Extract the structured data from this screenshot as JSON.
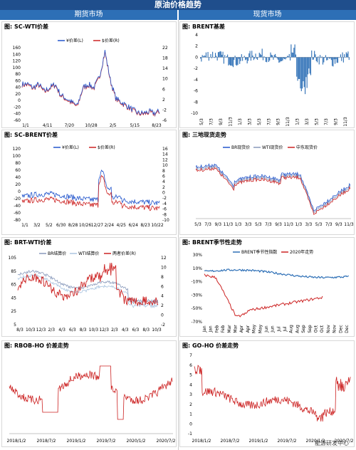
{
  "banner": "原油价格趋势",
  "headers": {
    "left": "期货市场",
    "right": "现货市场"
  },
  "footer": "能源研发中心",
  "chart_data": [
    {
      "id": "p1",
      "title": "图: SC-WTI价差",
      "type": "line",
      "dual": true,
      "categories": [
        "1/1",
        "4/11",
        "7/20",
        "10/28",
        "2/5",
        "5/15",
        "8/23"
      ],
      "ylim": [
        -60,
        160
      ],
      "y2lim": [
        -6,
        22
      ],
      "yticks": [
        -60,
        -40,
        -20,
        0,
        20,
        40,
        60,
        80,
        100,
        120,
        140,
        160
      ],
      "y2ticks": [
        -6,
        -2,
        2,
        6,
        10,
        14,
        18,
        22
      ],
      "series": [
        {
          "name": "¥价差(L)",
          "color": "#2255cc",
          "axis": "left"
        },
        {
          "name": "$价差(R)",
          "color": "#cc2222",
          "axis": "right"
        }
      ],
      "shape": [
        0.5,
        0.5,
        0.45,
        0.5,
        0.4,
        0.45,
        0.5,
        0.35,
        0.3,
        0.25,
        0.2,
        0.45,
        0.5,
        0.45,
        0.6,
        0.95,
        0.55,
        0.3,
        0.25,
        0.2,
        0.15,
        0.1,
        0.1,
        0.12,
        0.1,
        0.13
      ]
    },
    {
      "id": "p2",
      "title": "图: BRENT基差",
      "type": "bar",
      "categories": [
        "5/3",
        "7/3",
        "9/3",
        "11/3",
        "1/3",
        "3/3",
        "5/3",
        "7/3",
        "9/3",
        "11/3",
        "1/3",
        "3/3",
        "5/3",
        "7/3",
        "9/3",
        "11/3"
      ],
      "ylim": [
        -10,
        4
      ],
      "yticks": [
        -10,
        -8,
        -6,
        -4,
        -2,
        0,
        2,
        4
      ],
      "series": [
        {
          "name": "BRENT基差",
          "color": "#2d6fb6"
        }
      ]
    },
    {
      "id": "p3",
      "title": "图: SC-BRENT价差",
      "type": "line",
      "dual": true,
      "categories": [
        "1/1",
        "3/2",
        "5/2",
        "6/30",
        "8/28",
        "10/26",
        "12/27",
        "2/24",
        "4/25",
        "6/24",
        "8/23",
        "10/22"
      ],
      "ylim": [
        -80,
        120
      ],
      "y2lim": [
        -10,
        16
      ],
      "yticks": [
        -80,
        -60,
        -40,
        -20,
        0,
        20,
        40,
        60,
        80,
        100,
        120
      ],
      "y2ticks": [
        -10,
        -8,
        -6,
        -4,
        -2,
        0,
        2,
        4,
        6,
        8,
        10,
        12,
        14,
        16
      ],
      "series": [
        {
          "name": "¥价差(L)",
          "color": "#2255cc",
          "axis": "left"
        },
        {
          "name": "$价差(R)",
          "color": "#cc2222",
          "axis": "right"
        }
      ]
    },
    {
      "id": "p4",
      "title": "图: 三地现货走势",
      "type": "line",
      "categories": [
        "5/3",
        "7/3",
        "9/3",
        "11/3",
        "1/3",
        "3/3",
        "5/3",
        "7/3",
        "9/3",
        "11/3",
        "1/3",
        "3/3",
        "5/3",
        "7/3",
        "9/3",
        "11/3"
      ],
      "series": [
        {
          "name": "BR现货价",
          "color": "#2255cc"
        },
        {
          "name": "WTI现货价",
          "color": "#8899bb"
        },
        {
          "name": "中东现货价",
          "color": "#cc2222"
        }
      ]
    },
    {
      "id": "p5",
      "title": "图: BRT-WTI价差",
      "type": "line",
      "dual": true,
      "categories": [
        "8/3",
        "10/3",
        "12/3",
        "2/3",
        "4/3",
        "6/3",
        "8/3",
        "10/3",
        "12/3",
        "2/3",
        "4/3",
        "6/3",
        "8/3",
        "10/3"
      ],
      "ylim": [
        5,
        105
      ],
      "y2lim": [
        -2,
        12
      ],
      "yticks": [
        5,
        25,
        45,
        65,
        85,
        105
      ],
      "y2ticks": [
        -2,
        0,
        2,
        4,
        6,
        8,
        10,
        12
      ],
      "series": [
        {
          "name": "BR结算价",
          "color": "#8899bb",
          "axis": "left"
        },
        {
          "name": "WTI结算价",
          "color": "#aac4e0",
          "axis": "left"
        },
        {
          "name": "两者价差(R)",
          "color": "#cc2222",
          "axis": "right"
        }
      ]
    },
    {
      "id": "p6",
      "title": "图: BRENT季节性走势",
      "type": "line",
      "categories": [
        "Jan",
        "Jan",
        "Feb",
        "Feb",
        "Mar",
        "Mar",
        "Apr",
        "Apr",
        "May",
        "May",
        "Jun",
        "Jun",
        "Jul",
        "Jul",
        "Aug",
        "Aug",
        "Sep",
        "Sep",
        "Oct",
        "Oct",
        "Nov",
        "Nov",
        "Dec",
        "Dec"
      ],
      "ylim": [
        -70,
        30
      ],
      "yticks": [
        -70,
        -50,
        -30,
        -10,
        10,
        30
      ],
      "ytick_suffix": "%",
      "series": [
        {
          "name": "BRENT季节性指数",
          "color": "#2d6fb6"
        },
        {
          "name": "2020年走势",
          "color": "#cc2222"
        }
      ]
    },
    {
      "id": "p7",
      "title": "图: RBOB-HO 价差走势",
      "type": "line",
      "categories": [
        "2018/1/2",
        "2018/7/2",
        "2019/1/2",
        "2019/7/2",
        "2020/1/2",
        "2020/7/2"
      ],
      "series": [
        {
          "name": "RBOB-HO",
          "color": "#cc2222"
        }
      ]
    },
    {
      "id": "p8",
      "title": "图: GO-HO 价差走势",
      "type": "line",
      "categories": [
        "2018/1/2",
        "2018/7/2",
        "2019/1/2",
        "2019/7/2",
        "2020/1/2",
        "2020/7/2"
      ],
      "ylim": [
        -1,
        7
      ],
      "yticks": [
        -1,
        0,
        1,
        2,
        3,
        4,
        5,
        6,
        7
      ],
      "series": [
        {
          "name": "GO-HO",
          "color": "#cc2222"
        }
      ]
    }
  ]
}
